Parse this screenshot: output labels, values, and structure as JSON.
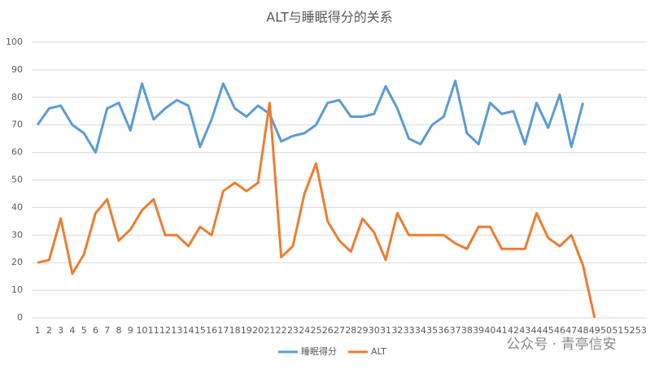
{
  "chart_data": {
    "type": "line",
    "title": "ALT与睡眠得分的关系",
    "categories": [
      1,
      2,
      3,
      4,
      5,
      6,
      7,
      8,
      9,
      10,
      11,
      12,
      13,
      14,
      15,
      16,
      17,
      18,
      19,
      20,
      21,
      22,
      23,
      24,
      25,
      26,
      27,
      28,
      29,
      30,
      31,
      32,
      33,
      34,
      35,
      36,
      37,
      38,
      39,
      40,
      41,
      42,
      43,
      44,
      45,
      46,
      47,
      48,
      49,
      50,
      51,
      52,
      53
    ],
    "series": [
      {
        "name": "睡眠得分",
        "color": "#5b9bd5",
        "values": [
          70,
          76,
          77,
          70,
          67,
          60,
          76,
          78,
          68,
          85,
          72,
          76,
          79,
          77,
          62,
          72,
          85,
          76,
          73,
          77,
          74,
          64,
          66,
          67,
          70,
          78,
          79,
          73,
          73,
          74,
          84,
          76,
          65,
          63,
          70,
          73,
          86,
          67,
          63,
          78,
          74,
          75,
          63,
          78,
          69,
          81,
          62,
          78,
          null,
          null,
          null,
          null,
          null
        ]
      },
      {
        "name": "ALT",
        "color": "#ed7d31",
        "values": [
          20,
          21,
          36,
          16,
          23,
          38,
          43,
          28,
          32,
          39,
          43,
          30,
          30,
          26,
          33,
          30,
          46,
          49,
          46,
          49,
          78,
          22,
          26,
          45,
          56,
          35,
          28,
          24,
          36,
          31,
          21,
          38,
          30,
          30,
          30,
          30,
          27,
          25,
          33,
          33,
          25,
          25,
          25,
          38,
          29,
          26,
          30,
          19,
          0,
          null,
          null,
          null,
          null
        ]
      }
    ],
    "ylim": [
      0,
      100
    ],
    "yticks": [
      0,
      10,
      20,
      30,
      40,
      50,
      60,
      70,
      80,
      90,
      100
    ],
    "grid": true,
    "legend": "bottom",
    "watermark": "公众号 · 青亭信安"
  }
}
